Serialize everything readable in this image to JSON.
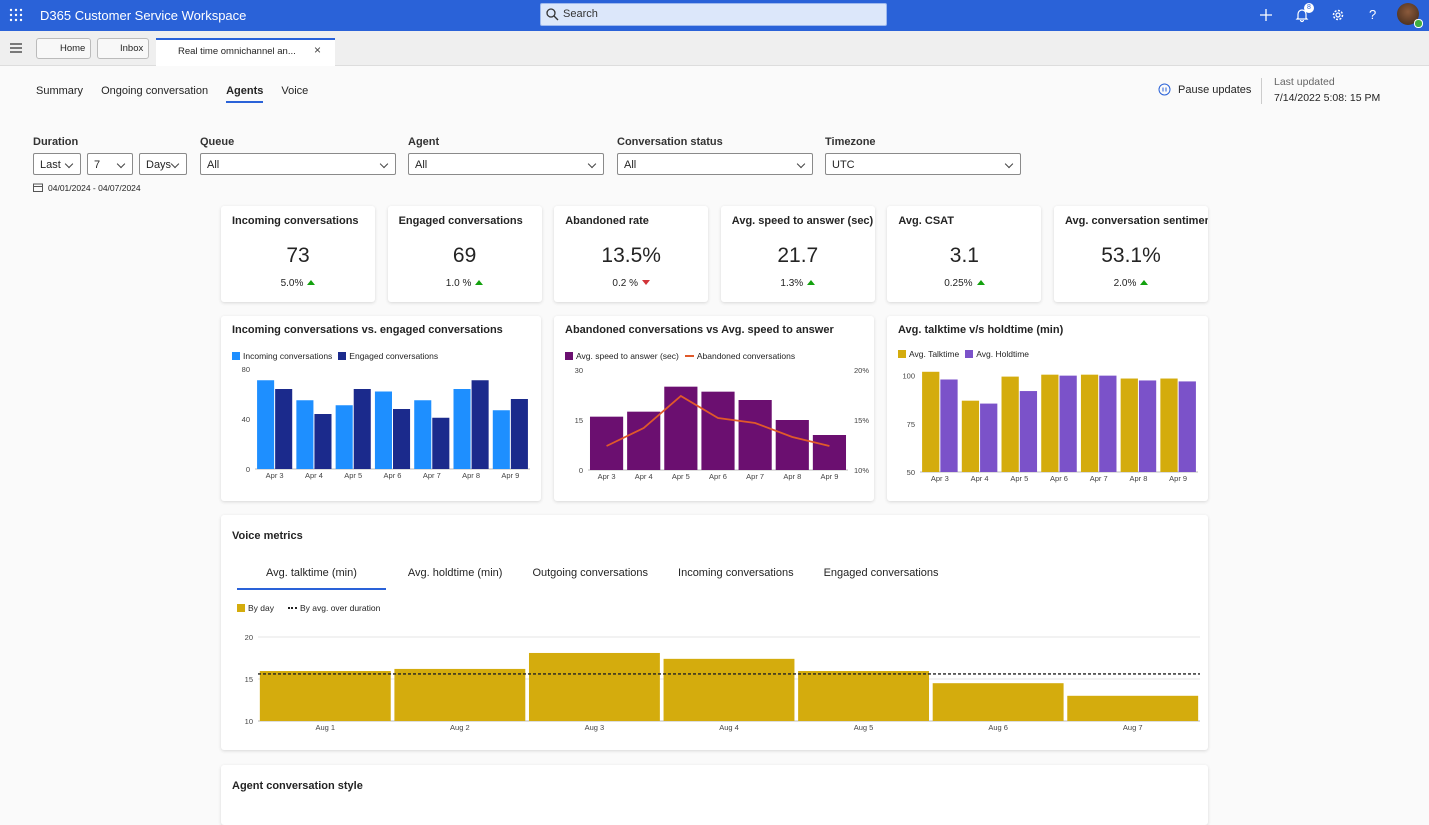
{
  "app": {
    "title": "D365 Customer Service Workspace",
    "search": "Search",
    "notifications": "8"
  },
  "tabs": {
    "home": "Home",
    "inbox": "Inbox",
    "active": "Real time omnichannel an..."
  },
  "nav": {
    "items": [
      "Summary",
      "Ongoing conversation",
      "Agents",
      "Voice"
    ],
    "active": 2
  },
  "status": {
    "pause": "Pause updates",
    "last_updated_label": "Last updated",
    "last_updated": "7/14/2022 5:08: 15 PM"
  },
  "filters": {
    "duration": {
      "label": "Duration",
      "mode": "Last",
      "count": "7",
      "unit": "Days",
      "range": "04/01/2024 - 04/07/2024"
    },
    "dropdowns": [
      {
        "label": "Queue",
        "value": "All"
      },
      {
        "label": "Agent",
        "value": "All"
      },
      {
        "label": "Conversation status",
        "value": "All"
      },
      {
        "label": "Timezone",
        "value": "UTC"
      }
    ]
  },
  "kpis": [
    {
      "title": "Incoming conversations",
      "value": "73",
      "change": "5.0%",
      "trend": "up"
    },
    {
      "title": "Engaged conversations",
      "value": "69",
      "change": "1.0 %",
      "trend": "up"
    },
    {
      "title": "Abandoned rate",
      "value": "13.5%",
      "change": "0.2 %",
      "trend": "down"
    },
    {
      "title": "Avg. speed to answer (sec)",
      "value": "21.7",
      "change": "1.3%",
      "trend": "up"
    },
    {
      "title": "Avg. CSAT",
      "value": "3.1",
      "change": "0.25%",
      "trend": "up"
    },
    {
      "title": "Avg. conversation sentiment",
      "value": "53.1%",
      "change": "2.0%",
      "trend": "up"
    }
  ],
  "charts": [
    {
      "type": "bar",
      "title": "Incoming conversations  vs. engaged conversations",
      "categories": [
        "Apr 3",
        "Apr 4",
        "Apr 5",
        "Apr 6",
        "Apr 7",
        "Apr 8",
        "Apr 9"
      ],
      "series": [
        {
          "name": "Incoming conversations",
          "color": "#1e8fff",
          "values": [
            71,
            55,
            51,
            62,
            55,
            64,
            47
          ]
        },
        {
          "name": "Engaged conversations",
          "color": "#1b2a8c",
          "values": [
            64,
            44,
            64,
            48,
            41,
            71,
            56
          ]
        }
      ],
      "ylim": [
        0,
        80
      ],
      "yticks": [
        0,
        40,
        80
      ],
      "grid": false
    },
    {
      "type": "bar",
      "title": "Abandoned conversations vs Avg. speed to answer",
      "categories": [
        "Apr 3",
        "Apr 4",
        "Apr 5",
        "Apr 6",
        "Apr 7",
        "Apr 8",
        "Apr 9"
      ],
      "series": [
        {
          "name": "Avg. speed to answer (sec)",
          "color": "#6b0f70",
          "values": [
            16,
            17.5,
            25,
            23.5,
            21,
            15,
            10.5
          ]
        },
        {
          "name": "Abandoned conversations",
          "type": "line",
          "axis": "y2",
          "color": "#e0592a",
          "values": [
            12.4,
            14.2,
            17.4,
            15.2,
            14.7,
            13.3,
            12.4
          ]
        }
      ],
      "ylim": [
        0,
        30
      ],
      "yticks": [
        0,
        15,
        30
      ],
      "y2lim": [
        10,
        20
      ],
      "y2ticks": [
        {
          "value": 10,
          "label": "10%"
        },
        {
          "value": 15,
          "label": "15%"
        },
        {
          "value": 20,
          "label": "20%"
        }
      ],
      "grid": false
    },
    {
      "type": "bar",
      "title": "Avg. talktime v/s holdtime (min)",
      "categories": [
        "Apr 3",
        "Apr 4",
        "Apr 5",
        "Apr 6",
        "Apr 7",
        "Apr 8",
        "Apr 9"
      ],
      "series": [
        {
          "name": "Avg. Talktime",
          "color": "#d4ac0d",
          "values": [
            102,
            87,
            99.5,
            100.5,
            100.5,
            98.5,
            98.5
          ]
        },
        {
          "name": "Avg. Holdtime",
          "color": "#7b52c9",
          "values": [
            98,
            85.5,
            92,
            100,
            100,
            97.5,
            97
          ]
        }
      ],
      "ylim": [
        50,
        105
      ],
      "yticks": [
        50,
        75,
        100
      ],
      "grid": false
    }
  ],
  "voice": {
    "title": "Voice metrics",
    "tabs": [
      "Avg. talktime (min)",
      "Avg. holdtime (min)",
      "Outgoing conversations",
      "Incoming conversations",
      "Engaged conversations"
    ],
    "active_tab": 0,
    "chart": {
      "type": "bar",
      "categories": [
        "Aug 1",
        "Aug 2",
        "Aug 3",
        "Aug 4",
        "Aug 5",
        "Aug 6",
        "Aug 7"
      ],
      "series": [
        {
          "name": "By day",
          "color": "#d4ac0d",
          "values": [
            15.95,
            16.2,
            18.1,
            17.4,
            15.95,
            14.5,
            13
          ]
        }
      ],
      "reference_line": {
        "name": "By avg. over duration",
        "value": 15.6,
        "style": "dashed"
      },
      "ylim": [
        10,
        20
      ],
      "yticks": [
        10,
        15,
        20
      ],
      "grid": true
    }
  },
  "next_section": {
    "title": "Agent conversation style"
  }
}
